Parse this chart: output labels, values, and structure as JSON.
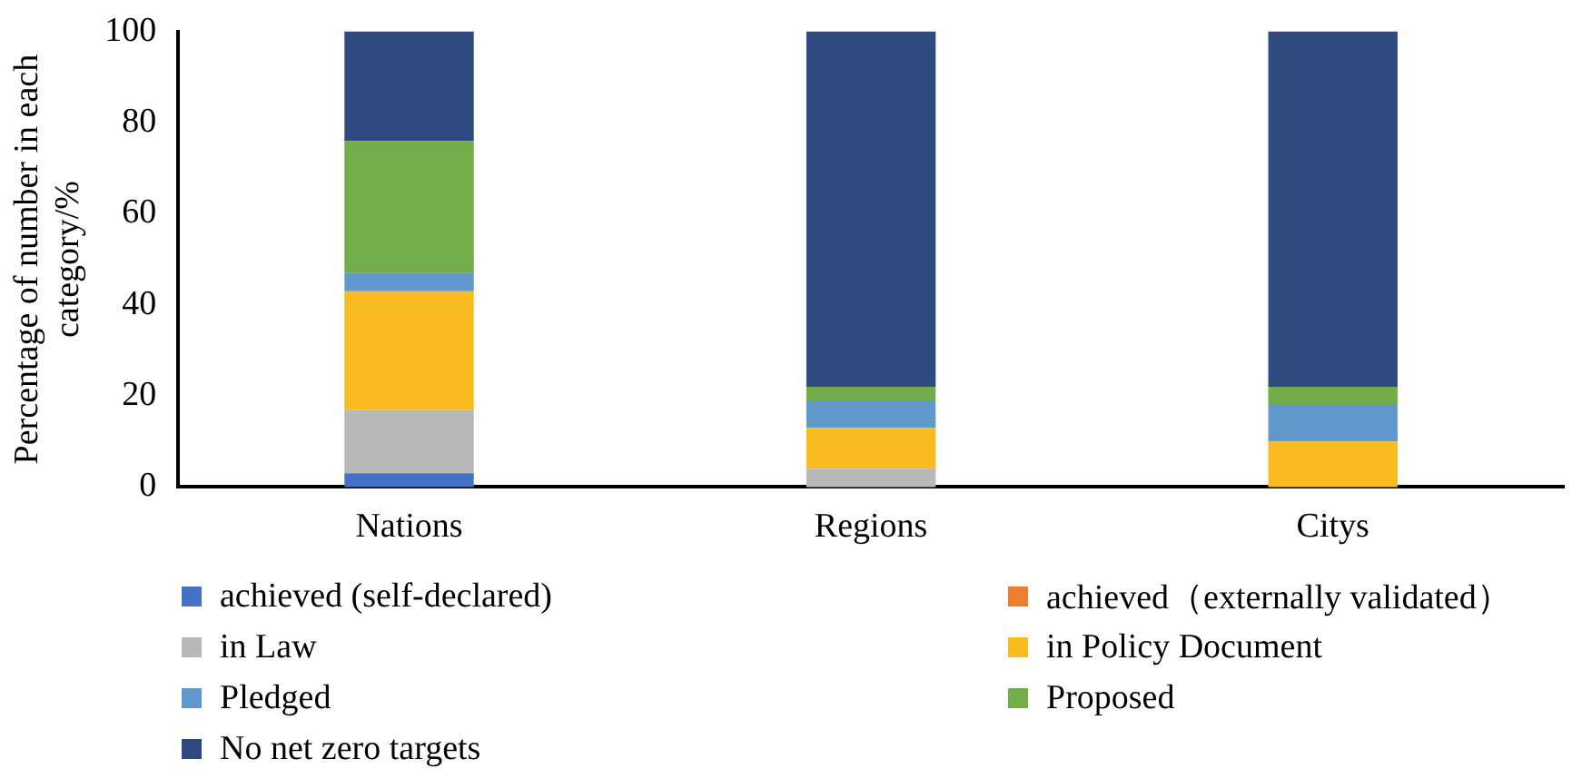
{
  "chart_data": {
    "type": "bar",
    "stacked": true,
    "ylabel": "Percentage of number in each category/%",
    "categories": [
      "Nations",
      "Regions",
      "Citys"
    ],
    "series": [
      {
        "name": "achieved (self-declared)",
        "color": "#4472c4",
        "values": [
          3,
          0,
          0
        ]
      },
      {
        "name": "achieved（externally validated）",
        "color": "#ed7d31",
        "values": [
          0,
          0,
          0
        ]
      },
      {
        "name": "in Law",
        "color": "#b8b8b8",
        "values": [
          14,
          4,
          0
        ]
      },
      {
        "name": "in Policy Document",
        "color": "#f8bc20",
        "values": [
          26,
          9,
          10
        ]
      },
      {
        "name": "Pledged",
        "color": "#6198cc",
        "values": [
          4,
          6,
          8
        ]
      },
      {
        "name": "Proposed",
        "color": "#72ad4a",
        "values": [
          29,
          3,
          4
        ]
      },
      {
        "name": "No net zero targets",
        "color": "#2f4a7e",
        "values": [
          24,
          78,
          78
        ]
      }
    ],
    "ylim": [
      0,
      100
    ],
    "yticks": [
      0,
      20,
      40,
      60,
      80,
      100
    ],
    "grid": false,
    "legend": "bottom"
  }
}
